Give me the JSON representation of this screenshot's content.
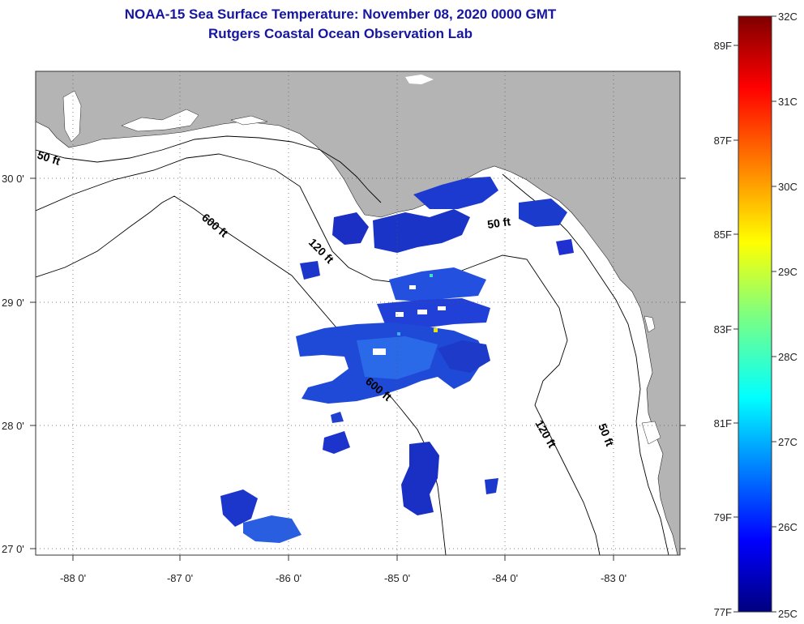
{
  "title": {
    "line1": "NOAA-15 Sea Surface Temperature:  November 08, 2020 0000 GMT",
    "line2": "Rutgers Coastal Ocean Observation Lab"
  },
  "map": {
    "latitude_labels": [
      "30 0'",
      "29 0'",
      "28 0'",
      "27 0'"
    ],
    "longitude_labels": [
      "-88 0'",
      "-87 0'",
      "-86 0'",
      "-85 0'",
      "-84 0'",
      "-83 0'"
    ],
    "contour_labels": {
      "c50_west": "50 ft",
      "c600_north": "600 ft",
      "c120_north": "120 ft",
      "c50_east": "50 ft",
      "c600_south": "600 ft",
      "c120_south": "120 ft",
      "c50_south": "50 ft"
    },
    "colors": {
      "land": "#b4b4b4",
      "ocean": "#ffffff",
      "sst_dominant": "#1a3fd6"
    }
  },
  "colorbar": {
    "celsius_labels": [
      "32C",
      "31C",
      "30C",
      "29C",
      "28C",
      "27C",
      "26C",
      "25C"
    ],
    "fahrenheit_labels": [
      "89F",
      "87F",
      "85F",
      "83F",
      "81F",
      "79F",
      "77F"
    ],
    "range_celsius": [
      25,
      32
    ],
    "colormap": "jet"
  }
}
